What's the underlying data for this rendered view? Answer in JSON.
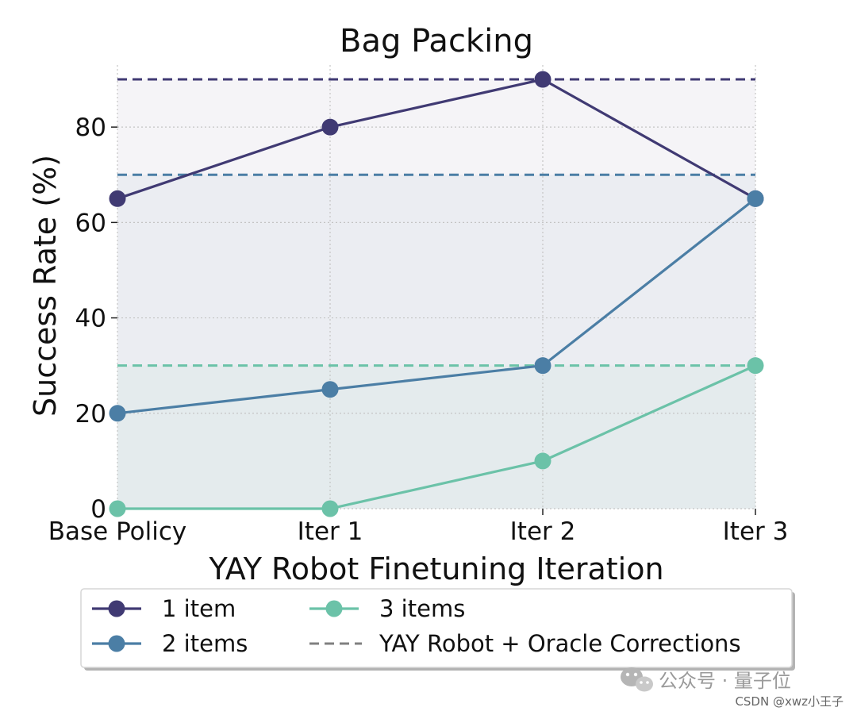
{
  "chart_data": {
    "type": "line",
    "title": "Bag Packing",
    "xlabel": "YAY Robot Finetuning Iteration",
    "ylabel": "Success Rate (%)",
    "categories": [
      "Base Policy",
      "Iter 1",
      "Iter 2",
      "Iter 3"
    ],
    "ylim": [
      0,
      93
    ],
    "yticks": [
      0,
      20,
      40,
      60,
      80
    ],
    "grid": true,
    "legend_placement": "bottom",
    "series": [
      {
        "name": "1 item",
        "values": [
          65,
          80,
          90,
          65
        ],
        "oracle": 90,
        "color": "#403a73"
      },
      {
        "name": "2 items",
        "values": [
          20,
          25,
          30,
          65
        ],
        "oracle": 70,
        "color": "#4b7ea5"
      },
      {
        "name": "3 items",
        "values": [
          0,
          0,
          10,
          30
        ],
        "oracle": 30,
        "color": "#6bc2a8"
      }
    ],
    "oracle_legend_label": "YAY Robot + Oracle Corrections",
    "oracle_legend_color": "#808080"
  },
  "watermark": {
    "text": "公众号 · 量子位",
    "icon": "wechat-icon"
  },
  "credit": "CSDN @xwz小王子"
}
